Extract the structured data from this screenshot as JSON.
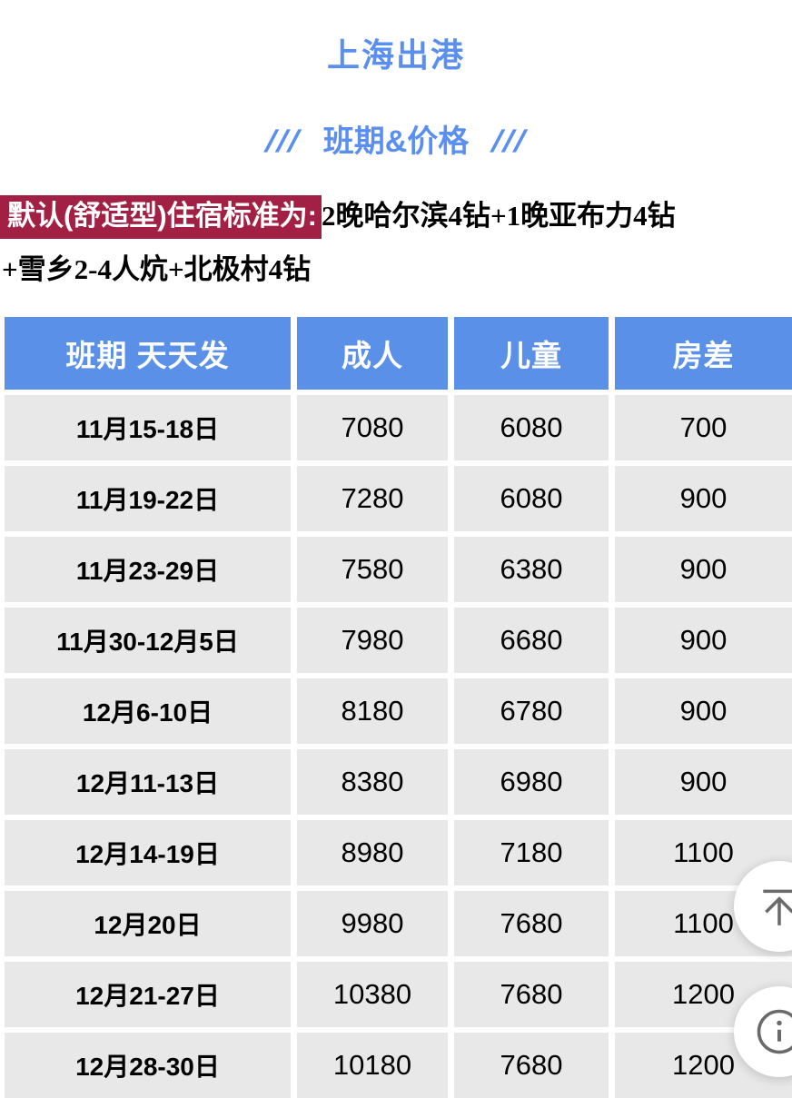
{
  "header": {
    "title": "上海出港",
    "decor_left": "///",
    "subtitle": "班期&价格",
    "decor_right": "///"
  },
  "note": {
    "highlight": "默认(舒适型)住宿标准为:",
    "line1_rest": "2晚哈尔滨4钻+1晚亚布力4钻",
    "line2": "+雪乡2-4人炕+北极村4钻"
  },
  "table": {
    "headers": [
      "班期 天天发",
      "成人",
      "儿童",
      "房差"
    ],
    "column_keys": [
      "schedule",
      "adult_price",
      "child_price",
      "room_diff"
    ],
    "rows": [
      [
        "11月15-18日",
        "7080",
        "6080",
        "700"
      ],
      [
        "11月19-22日",
        "7280",
        "6080",
        "900"
      ],
      [
        "11月23-29日",
        "7580",
        "6380",
        "900"
      ],
      [
        "11月30-12月5日",
        "7980",
        "6680",
        "900"
      ],
      [
        "12月6-10日",
        "8180",
        "6780",
        "900"
      ],
      [
        "12月11-13日",
        "8380",
        "6980",
        "900"
      ],
      [
        "12月14-19日",
        "8980",
        "7180",
        "1100"
      ],
      [
        "12月20日",
        "9980",
        "7680",
        "1100"
      ],
      [
        "12月21-27日",
        "10380",
        "7680",
        "1200"
      ],
      [
        "12月28-30日",
        "10180",
        "7680",
        "1200"
      ]
    ]
  },
  "floating_buttons": {
    "back_to_top": "back-to-top-icon",
    "info": "info-icon"
  },
  "colors": {
    "accent_blue": "#5a8ff0",
    "table_header_blue": "#5b90e8",
    "highlight_red": "#a32045",
    "cell_gray": "#e8e8e8",
    "icon_gray": "#6a6a6a"
  }
}
